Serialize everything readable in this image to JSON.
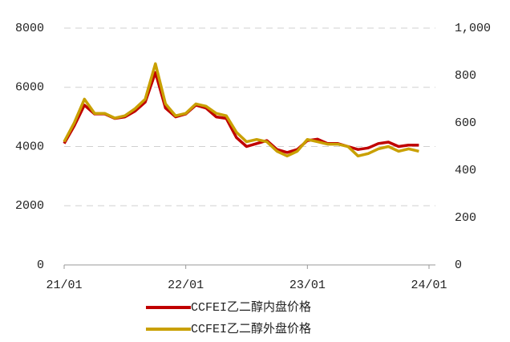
{
  "chart_data": {
    "type": "line",
    "x": [
      "21/01",
      "21/02",
      "21/03",
      "21/04",
      "21/05",
      "21/06",
      "21/07",
      "21/08",
      "21/09",
      "21/10",
      "21/11",
      "21/12",
      "22/01",
      "22/02",
      "22/03",
      "22/04",
      "22/05",
      "22/06",
      "22/07",
      "22/08",
      "22/09",
      "22/10",
      "22/11",
      "22/12",
      "23/01",
      "23/02",
      "23/03",
      "23/04",
      "23/05",
      "23/06",
      "23/07",
      "23/08",
      "23/09",
      "23/10",
      "23/11",
      "23/12"
    ],
    "xticks": [
      "21/01",
      "22/01",
      "23/01",
      "24/01"
    ],
    "ylim": [
      0,
      8000
    ],
    "yticks": [
      0,
      2000,
      4000,
      6000,
      8000
    ],
    "y2lim": [
      0,
      1000
    ],
    "y2ticks": [
      0,
      200,
      400,
      600,
      800,
      {
        "value": 1000,
        "label": "1,000"
      }
    ],
    "grid": true,
    "series": [
      {
        "name": "CCFEI乙二醇内盘价格",
        "color": "#c00000",
        "axis": "y",
        "values": [
          4100,
          4700,
          5400,
          5100,
          5100,
          4950,
          5000,
          5200,
          5500,
          6500,
          5300,
          5000,
          5100,
          5400,
          5300,
          5000,
          4950,
          4300,
          4000,
          4100,
          4200,
          3900,
          3800,
          3900,
          4200,
          4250,
          4100,
          4100,
          4000,
          3900,
          3950,
          4100,
          4150,
          4000,
          4050,
          4050
        ]
      },
      {
        "name": "CCFEI乙二醇外盘价格",
        "color": "#c9a000",
        "axis": "y2",
        "values": [
          520,
          600,
          700,
          640,
          640,
          620,
          630,
          660,
          700,
          850,
          680,
          630,
          640,
          680,
          670,
          640,
          630,
          560,
          520,
          530,
          520,
          480,
          460,
          480,
          530,
          520,
          510,
          510,
          500,
          460,
          470,
          490,
          500,
          480,
          490,
          480
        ]
      }
    ]
  }
}
